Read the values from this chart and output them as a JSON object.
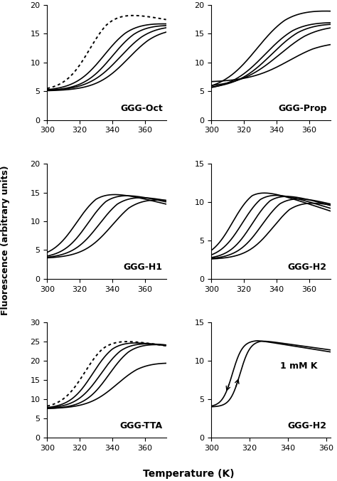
{
  "panels": [
    {
      "label": "GGG-Oct",
      "row": 0,
      "col": 0,
      "ylim": [
        0,
        20
      ],
      "yticks": [
        0,
        5,
        10,
        15,
        20
      ],
      "xlim": [
        300,
        373
      ],
      "xticks": [
        300,
        320,
        340,
        360
      ],
      "curve_style": "oct",
      "note": ""
    },
    {
      "label": "GGG-Prop",
      "row": 0,
      "col": 1,
      "ylim": [
        0,
        20
      ],
      "yticks": [
        0,
        5,
        10,
        15,
        20
      ],
      "xlim": [
        300,
        373
      ],
      "xticks": [
        300,
        320,
        340,
        360
      ],
      "curve_style": "prop",
      "note": ""
    },
    {
      "label": "GGG-H1",
      "row": 1,
      "col": 0,
      "ylim": [
        0,
        20
      ],
      "yticks": [
        0,
        5,
        10,
        15,
        20
      ],
      "xlim": [
        300,
        373
      ],
      "xticks": [
        300,
        320,
        340,
        360
      ],
      "curve_style": "h1",
      "note": ""
    },
    {
      "label": "GGG-H2",
      "row": 1,
      "col": 1,
      "ylim": [
        0,
        15
      ],
      "yticks": [
        0,
        5,
        10,
        15
      ],
      "xlim": [
        300,
        373
      ],
      "xticks": [
        300,
        320,
        340,
        360
      ],
      "curve_style": "h2",
      "note": ""
    },
    {
      "label": "GGG-TTA",
      "row": 2,
      "col": 0,
      "ylim": [
        0,
        30
      ],
      "yticks": [
        0,
        5,
        10,
        15,
        20,
        25,
        30
      ],
      "xlim": [
        300,
        373
      ],
      "xticks": [
        300,
        320,
        340,
        360
      ],
      "curve_style": "tta",
      "note": ""
    },
    {
      "label": "GGG-H2",
      "row": 2,
      "col": 1,
      "ylim": [
        0,
        15
      ],
      "yticks": [
        0,
        5,
        10,
        15
      ],
      "xlim": [
        300,
        362
      ],
      "xticks": [
        300,
        320,
        340,
        360
      ],
      "curve_style": "hysteresis",
      "note": "1 mM K"
    }
  ],
  "ylabel": "Fluorescence (arbitrary units)",
  "xlabel": "Temperature (K)",
  "label_fontsize": 9,
  "tick_fontsize": 8,
  "bg_color": "#ffffff"
}
